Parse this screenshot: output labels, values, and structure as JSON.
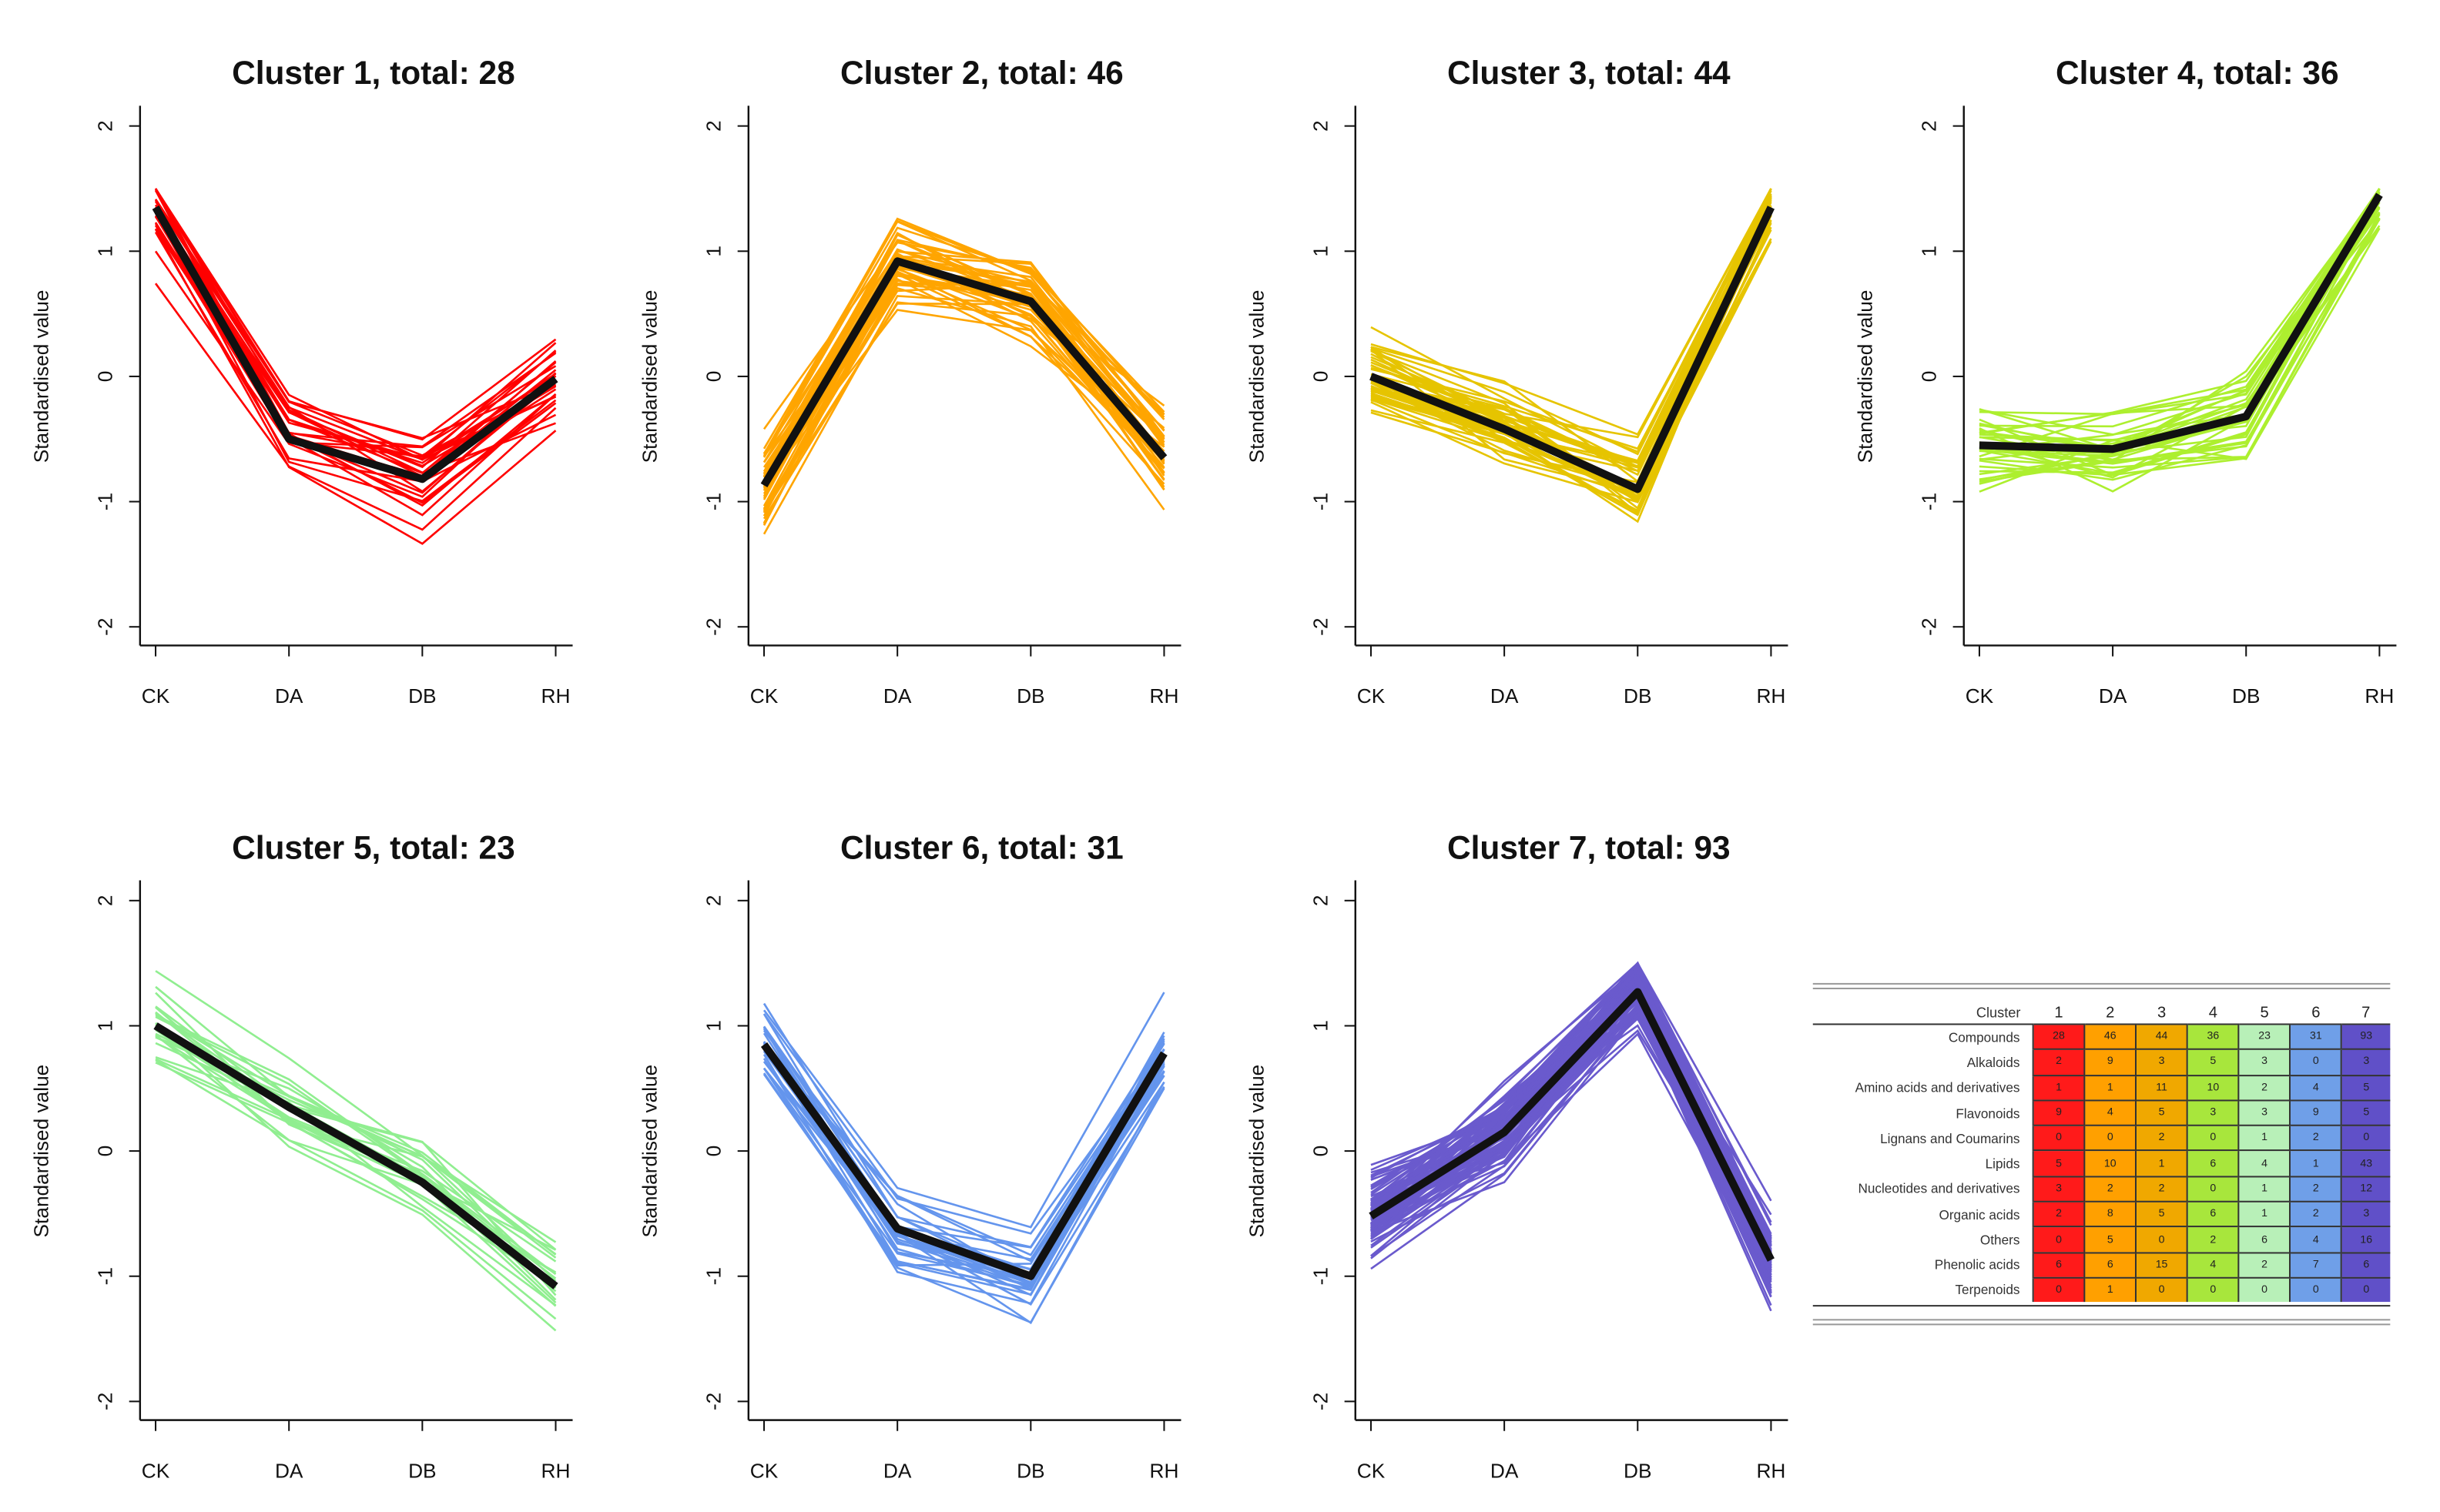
{
  "chart_data": [
    {
      "type": "line",
      "title": "Cluster  1, total: 28",
      "total": 28,
      "color": "#ff0000",
      "categories": [
        "CK",
        "DA",
        "DB",
        "RH"
      ],
      "mean": [
        1.35,
        -0.5,
        -0.82,
        -0.02
      ],
      "ylabel": "Standardised value",
      "ylim": [
        -2,
        2
      ],
      "yticks": [
        "-2",
        "-1",
        "0",
        "1",
        "2"
      ]
    },
    {
      "type": "line",
      "title": "Cluster  2, total: 46",
      "total": 46,
      "color": "#ffa500",
      "categories": [
        "CK",
        "DA",
        "DB",
        "RH"
      ],
      "mean": [
        -0.87,
        0.92,
        0.6,
        -0.65
      ],
      "ylabel": "Standardised value",
      "ylim": [
        -2,
        2
      ],
      "yticks": [
        "-2",
        "-1",
        "0",
        "1",
        "2"
      ]
    },
    {
      "type": "line",
      "title": "Cluster  3, total: 44",
      "total": 44,
      "color": "#e6c400",
      "categories": [
        "CK",
        "DA",
        "DB",
        "RH"
      ],
      "mean": [
        0.0,
        -0.42,
        -0.9,
        1.35
      ],
      "ylabel": "Standardised value",
      "ylim": [
        -2,
        2
      ],
      "yticks": [
        "-2",
        "-1",
        "0",
        "1",
        "2"
      ]
    },
    {
      "type": "line",
      "title": "Cluster  4, total: 36",
      "total": 36,
      "color": "#adef2f",
      "categories": [
        "CK",
        "DA",
        "DB",
        "RH"
      ],
      "mean": [
        -0.55,
        -0.58,
        -0.32,
        1.45
      ],
      "ylabel": "Standardised value",
      "ylim": [
        -2,
        2
      ],
      "yticks": [
        "-2",
        "-1",
        "0",
        "1",
        "2"
      ]
    },
    {
      "type": "line",
      "title": "Cluster  5, total: 23",
      "total": 23,
      "color": "#90ee90",
      "categories": [
        "CK",
        "DA",
        "DB",
        "RH"
      ],
      "mean": [
        1.0,
        0.35,
        -0.25,
        -1.08
      ],
      "ylabel": "Standardised value",
      "ylim": [
        -2,
        2
      ],
      "yticks": [
        "-2",
        "-1",
        "0",
        "1",
        "2"
      ]
    },
    {
      "type": "line",
      "title": "Cluster  6, total: 31",
      "total": 31,
      "color": "#6495ed",
      "categories": [
        "CK",
        "DA",
        "DB",
        "RH"
      ],
      "mean": [
        0.85,
        -0.62,
        -1.0,
        0.78
      ],
      "ylabel": "Standardised value",
      "ylim": [
        -2,
        2
      ],
      "yticks": [
        "-2",
        "-1",
        "0",
        "1",
        "2"
      ]
    },
    {
      "type": "line",
      "title": "Cluster  7, total: 93",
      "total": 93,
      "color": "#6a5acd",
      "categories": [
        "CK",
        "DA",
        "DB",
        "RH"
      ],
      "mean": [
        -0.52,
        0.15,
        1.27,
        -0.87
      ],
      "ylabel": "Standardised value",
      "ylim": [
        -2,
        2
      ],
      "yticks": [
        "-2",
        "-1",
        "0",
        "1",
        "2"
      ]
    }
  ],
  "table": {
    "header_label": "Cluster",
    "columns": [
      "1",
      "2",
      "3",
      "4",
      "5",
      "6",
      "7"
    ],
    "colors": [
      "#ff1a1a",
      "#ffa000",
      "#f0a800",
      "#a8e63c",
      "#b8f0b8",
      "#6f9fe8",
      "#6050c8"
    ],
    "rows": [
      {
        "label": "Compounds",
        "values": [
          "28",
          "46",
          "44",
          "36",
          "23",
          "31",
          "93"
        ]
      },
      {
        "label": "Alkaloids",
        "values": [
          "2",
          "9",
          "3",
          "5",
          "3",
          "0",
          "3"
        ]
      },
      {
        "label": "Amino acids and derivatives",
        "values": [
          "1",
          "1",
          "11",
          "10",
          "2",
          "4",
          "5"
        ]
      },
      {
        "label": "Flavonoids",
        "values": [
          "9",
          "4",
          "5",
          "3",
          "3",
          "9",
          "5"
        ]
      },
      {
        "label": "Lignans and Coumarins",
        "values": [
          "0",
          "0",
          "2",
          "0",
          "1",
          "2",
          "0"
        ]
      },
      {
        "label": "Lipids",
        "values": [
          "5",
          "10",
          "1",
          "6",
          "4",
          "1",
          "43"
        ]
      },
      {
        "label": "Nucleotides and derivatives",
        "values": [
          "3",
          "2",
          "2",
          "0",
          "1",
          "2",
          "12"
        ]
      },
      {
        "label": "Organic acids",
        "values": [
          "2",
          "8",
          "5",
          "6",
          "1",
          "2",
          "3"
        ]
      },
      {
        "label": "Others",
        "values": [
          "0",
          "5",
          "0",
          "2",
          "6",
          "4",
          "16"
        ]
      },
      {
        "label": "Phenolic acids",
        "values": [
          "6",
          "6",
          "15",
          "4",
          "2",
          "7",
          "6"
        ]
      },
      {
        "label": "Terpenoids",
        "values": [
          "0",
          "1",
          "0",
          "0",
          "0",
          "0",
          "0"
        ]
      }
    ]
  }
}
